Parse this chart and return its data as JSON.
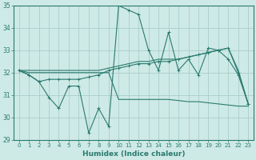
{
  "xlabel": "Humidex (Indice chaleur)",
  "x": [
    0,
    1,
    2,
    3,
    4,
    5,
    6,
    7,
    8,
    9,
    10,
    11,
    12,
    13,
    14,
    15,
    16,
    17,
    18,
    19,
    20,
    21,
    22,
    23
  ],
  "line1": [
    32.1,
    31.9,
    31.6,
    30.9,
    30.4,
    31.4,
    31.4,
    29.3,
    30.4,
    29.6,
    35.0,
    34.8,
    34.6,
    33.0,
    32.1,
    33.8,
    32.1,
    32.6,
    31.9,
    33.1,
    33.0,
    32.6,
    31.9,
    30.6
  ],
  "line2": [
    32.1,
    31.9,
    31.6,
    31.7,
    31.7,
    31.7,
    31.7,
    31.8,
    31.9,
    32.1,
    32.2,
    32.3,
    32.4,
    32.4,
    32.5,
    32.5,
    32.6,
    32.7,
    32.8,
    32.9,
    33.0,
    33.1,
    32.0,
    30.6
  ],
  "line3": [
    32.1,
    32.1,
    32.1,
    32.1,
    32.1,
    32.1,
    32.1,
    32.1,
    32.1,
    32.2,
    32.3,
    32.4,
    32.5,
    32.5,
    32.6,
    32.6,
    32.6,
    32.7,
    32.8,
    32.9,
    33.0,
    33.1,
    32.1,
    30.6
  ],
  "line4": [
    32.1,
    32.0,
    32.0,
    32.0,
    32.0,
    32.0,
    32.0,
    32.0,
    32.0,
    32.0,
    30.8,
    30.8,
    30.8,
    30.8,
    30.8,
    30.8,
    30.75,
    30.7,
    30.7,
    30.65,
    30.6,
    30.55,
    30.5,
    30.5
  ],
  "line_color": "#2a7a6e",
  "bg_color": "#ceeae6",
  "grid_color": "#a8ceca",
  "ylim": [
    29,
    35
  ],
  "yticks": [
    29,
    30,
    31,
    32,
    33,
    34,
    35
  ],
  "xlim": [
    -0.5,
    23.5
  ],
  "xticks": [
    0,
    1,
    2,
    3,
    4,
    5,
    6,
    7,
    8,
    9,
    10,
    11,
    12,
    13,
    14,
    15,
    16,
    17,
    18,
    19,
    20,
    21,
    22,
    23
  ]
}
